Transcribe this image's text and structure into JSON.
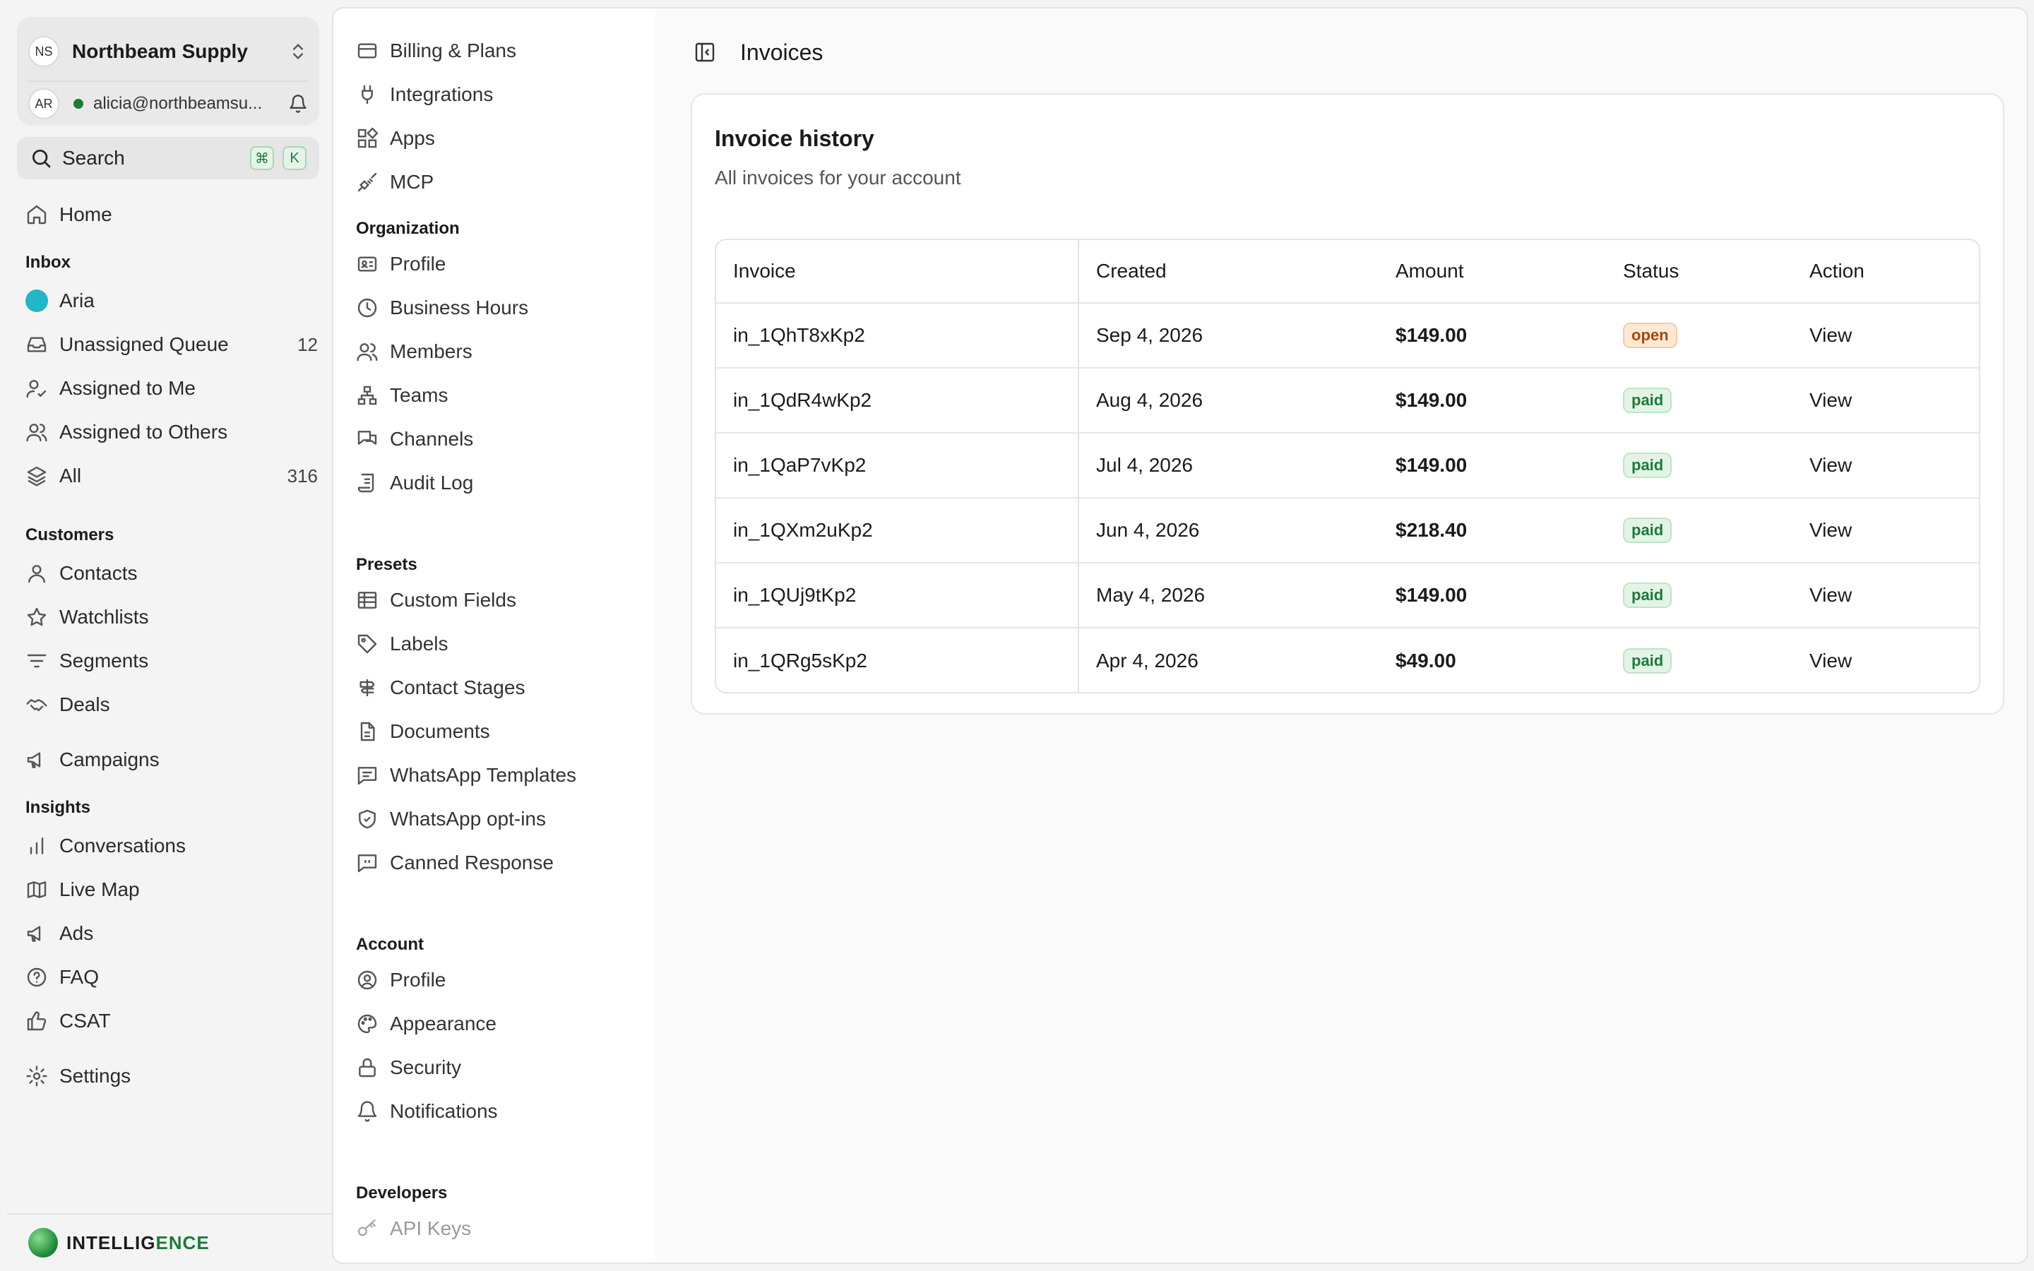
{
  "workspace": {
    "initials": "NS",
    "name": "Northbeam Supply"
  },
  "user": {
    "initials": "AR",
    "email": "alicia@northbeamsu..."
  },
  "search": {
    "label": "Search",
    "kbd1": "⌘",
    "kbd2": "K"
  },
  "nav": {
    "home": "Home",
    "inbox_head": "Inbox",
    "aria": "Aria",
    "unassigned": "Unassigned Queue",
    "unassigned_count": "12",
    "assigned_me": "Assigned to Me",
    "assigned_others": "Assigned to Others",
    "all": "All",
    "all_count": "316",
    "customers_head": "Customers",
    "contacts": "Contacts",
    "watchlists": "Watchlists",
    "segments": "Segments",
    "deals": "Deals",
    "campaigns": "Campaigns",
    "insights_head": "Insights",
    "conversations": "Conversations",
    "live_map": "Live Map",
    "ads": "Ads",
    "faq": "FAQ",
    "csat": "CSAT",
    "settings": "Settings"
  },
  "brand": {
    "text_a": "INTELLIG",
    "text_b": "ENCE"
  },
  "settings_menu": {
    "billing": "Billing & Plans",
    "integrations": "Integrations",
    "apps": "Apps",
    "mcp": "MCP",
    "org_head": "Organization",
    "org_profile": "Profile",
    "business_hours": "Business Hours",
    "members": "Members",
    "teams": "Teams",
    "channels": "Channels",
    "audit_log": "Audit Log",
    "presets_head": "Presets",
    "custom_fields": "Custom Fields",
    "labels": "Labels",
    "contact_stages": "Contact Stages",
    "documents": "Documents",
    "wa_templates": "WhatsApp Templates",
    "wa_optins": "WhatsApp opt-ins",
    "canned": "Canned Response",
    "account_head": "Account",
    "acct_profile": "Profile",
    "appearance": "Appearance",
    "security": "Security",
    "notifications": "Notifications",
    "dev_head": "Developers",
    "api_keys": "API Keys"
  },
  "page": {
    "title": "Invoices"
  },
  "invoices": {
    "title": "Invoice history",
    "subtitle": "All invoices for your account",
    "columns": {
      "invoice": "Invoice",
      "created": "Created",
      "amount": "Amount",
      "status": "Status",
      "action": "Action"
    },
    "rows": [
      {
        "id": "in_1QhT8xKp2",
        "created": "Sep 4, 2026",
        "amount": "$149.00",
        "status": "open",
        "action": "View"
      },
      {
        "id": "in_1QdR4wKp2",
        "created": "Aug 4, 2026",
        "amount": "$149.00",
        "status": "paid",
        "action": "View"
      },
      {
        "id": "in_1QaP7vKp2",
        "created": "Jul 4, 2026",
        "amount": "$149.00",
        "status": "paid",
        "action": "View"
      },
      {
        "id": "in_1QXm2uKp2",
        "created": "Jun 4, 2026",
        "amount": "$218.40",
        "status": "paid",
        "action": "View"
      },
      {
        "id": "in_1QUj9tKp2",
        "created": "May 4, 2026",
        "amount": "$149.00",
        "status": "paid",
        "action": "View"
      },
      {
        "id": "in_1QRg5sKp2",
        "created": "Apr 4, 2026",
        "amount": "$49.00",
        "status": "paid",
        "action": "View"
      }
    ]
  },
  "colors": {
    "accent": "#1f7a3a",
    "aria": "#22b6c6",
    "open_badge": "#fde8d4",
    "paid_badge": "#e3f4e7"
  }
}
